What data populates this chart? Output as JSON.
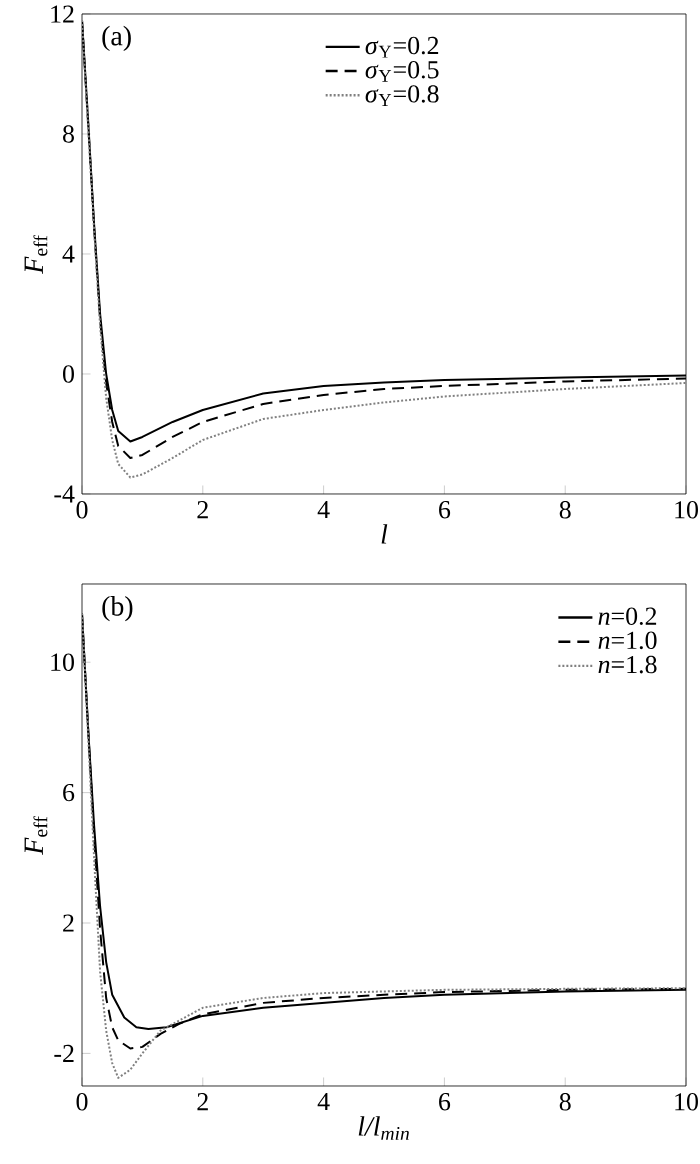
{
  "chart_data": [
    {
      "type": "line",
      "annotations": [
        "(a)"
      ],
      "xlabel": "l",
      "ylabel": "*F*$_{eff}$",
      "xlim": [
        0,
        10
      ],
      "ylim": [
        -4,
        12
      ],
      "xticks": [
        0,
        2,
        4,
        6,
        8,
        10
      ],
      "yticks": [
        -4,
        0,
        4,
        8,
        12
      ],
      "grid": false,
      "legend": "top",
      "marker": "none",
      "x": [
        0,
        0.1,
        0.2,
        0.3,
        0.4,
        0.5,
        0.6,
        0.8,
        1,
        1.5,
        2,
        3,
        4,
        5,
        6,
        8,
        10
      ],
      "series": [
        {
          "name": "*σ*$_{Y}$=0.2",
          "color": "#000000",
          "line_style": "solid",
          "values": [
            11.8,
            8.5,
            5,
            2,
            0,
            -1.2,
            -1.9,
            -2.25,
            -2.1,
            -1.6,
            -1.2,
            -0.65,
            -0.4,
            -0.28,
            -0.2,
            -0.12,
            -0.05
          ]
        },
        {
          "name": "*σ*$_{Y}$=0.5",
          "color": "#000000",
          "line_style": "dashed",
          "values": [
            11.8,
            8.4,
            4.9,
            1.8,
            -0.3,
            -1.6,
            -2.4,
            -2.8,
            -2.7,
            -2.1,
            -1.6,
            -1.0,
            -0.7,
            -0.5,
            -0.4,
            -0.25,
            -0.15
          ]
        },
        {
          "name": "*σ*$_{Y}$=0.8",
          "color": "#808080",
          "line_style": "dotted",
          "values": [
            11.8,
            8.3,
            4.8,
            1.6,
            -0.8,
            -2.2,
            -3.0,
            -3.45,
            -3.35,
            -2.8,
            -2.2,
            -1.5,
            -1.2,
            -0.95,
            -0.75,
            -0.5,
            -0.3
          ]
        }
      ]
    },
    {
      "type": "line",
      "annotations": [
        "(b)"
      ],
      "xlabel": "*l*/*l*$_{min}$",
      "ylabel": "*F*$_{eff}$",
      "xlim": [
        0,
        10
      ],
      "ylim": [
        -3,
        12.4
      ],
      "xticks": [
        0,
        2,
        4,
        6,
        8,
        10
      ],
      "yticks": [
        -2,
        2,
        6,
        10
      ],
      "grid": false,
      "legend": "top right",
      "marker": "none",
      "series": [
        {
          "name": "*n*=0.2",
          "color": "#000000",
          "line_style": "solid",
          "x": [
            0,
            0.1,
            0.2,
            0.3,
            0.4,
            0.5,
            0.7,
            0.9,
            1.1,
            1.4,
            2,
            3,
            4,
            5,
            6,
            8,
            10
          ],
          "values": [
            11.5,
            8,
            5,
            2.5,
            0.8,
            -0.2,
            -0.9,
            -1.2,
            -1.25,
            -1.2,
            -0.85,
            -0.6,
            -0.45,
            -0.3,
            -0.2,
            -0.1,
            -0.05
          ]
        },
        {
          "name": "*n*=1.0",
          "color": "#000000",
          "line_style": "dashed",
          "x": [
            0,
            0.1,
            0.2,
            0.3,
            0.4,
            0.5,
            0.6,
            0.8,
            1,
            1.3,
            1.6,
            2,
            3,
            4,
            5,
            6,
            8,
            10
          ],
          "values": [
            11.5,
            8,
            4.7,
            1.8,
            -0.3,
            -1.2,
            -1.6,
            -1.85,
            -1.8,
            -1.4,
            -1.1,
            -0.8,
            -0.45,
            -0.3,
            -0.2,
            -0.12,
            -0.05,
            -0.02
          ]
        },
        {
          "name": "*n*=1.8",
          "color": "#808080",
          "line_style": "dotted",
          "x": [
            0,
            0.1,
            0.2,
            0.3,
            0.4,
            0.5,
            0.6,
            0.8,
            1,
            1.3,
            1.6,
            2,
            3,
            4,
            5,
            6,
            8,
            10
          ],
          "values": [
            11.5,
            7.8,
            4,
            0.5,
            -1.3,
            -2.3,
            -2.75,
            -2.5,
            -2.0,
            -1.3,
            -1.0,
            -0.6,
            -0.3,
            -0.15,
            -0.1,
            -0.05,
            -0.02,
            0
          ]
        }
      ]
    }
  ]
}
